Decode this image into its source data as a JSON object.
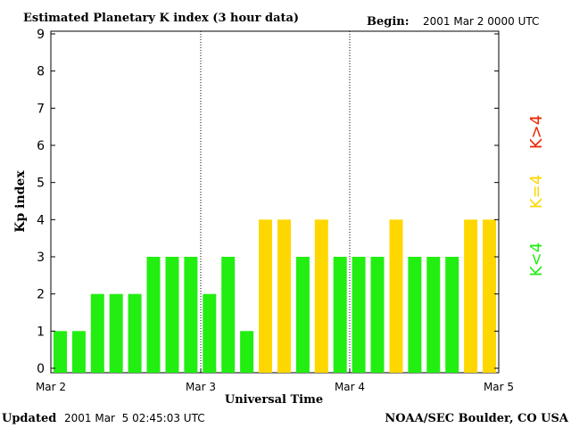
{
  "header": {
    "title": "Estimated Planetary K index (3 hour data)",
    "begin_label": "Begin:",
    "begin_value": "2001 Mar 2 0000 UTC"
  },
  "footer": {
    "updated_label": "Updated",
    "updated_value": "2001 Mar  5 02:45:03 UTC",
    "source": "NOAA/SEC Boulder, CO USA"
  },
  "colors": {
    "green": "#22ee11",
    "yellow": "#ffd700",
    "red": "#ee2200",
    "frame": "#000000"
  },
  "chart_data": {
    "type": "bar",
    "title": "Estimated Planetary K index (3 hour data)",
    "xlabel": "Universal Time",
    "ylabel": "Kp index",
    "ylim": [
      0,
      9
    ],
    "yticks": [
      "0",
      "1",
      "2",
      "3",
      "4",
      "5",
      "6",
      "7",
      "8",
      "9"
    ],
    "xticks": [
      "Mar 2",
      "Mar 3",
      "Mar 4",
      "Mar 5"
    ],
    "grid": false,
    "day_separators": "dotted vertical lines at Mar 3 and Mar 4",
    "values": [
      1,
      1,
      2,
      2,
      2,
      3,
      3,
      3,
      2,
      3,
      1,
      4,
      4,
      3,
      4,
      3,
      3,
      3,
      4,
      3,
      3,
      3,
      4,
      4
    ],
    "legend": [
      {
        "label": "K<4",
        "color": "green"
      },
      {
        "label": "K=4",
        "color": "yellow"
      },
      {
        "label": "K>4",
        "color": "red"
      }
    ]
  }
}
